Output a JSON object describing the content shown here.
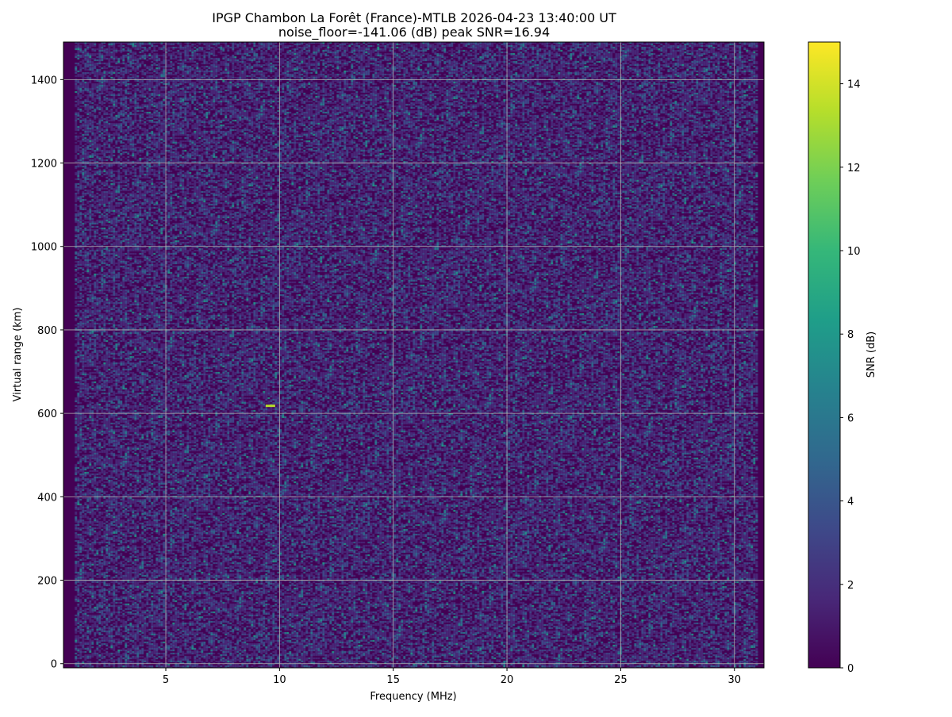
{
  "chart_data": {
    "type": "heatmap",
    "title": "IPGP Chambon La Forêt (France)-MTLB 2026-04-23 13:40:00  UT",
    "subtitle": "noise_floor=-141.06 (dB) peak SNR=16.94",
    "xlabel": "Frequency (MHz)",
    "ylabel": "Virtual range (km)",
    "xlim": [
      0.5,
      31.3
    ],
    "ylim": [
      -10,
      1490
    ],
    "x_ticks": [
      5,
      10,
      15,
      20,
      25,
      30
    ],
    "y_ticks": [
      0,
      200,
      400,
      600,
      800,
      1000,
      1200,
      1400
    ],
    "grid": true,
    "colorbar": {
      "label": "SNR (dB)",
      "range": [
        0,
        15
      ],
      "ticks": [
        0,
        2,
        4,
        6,
        8,
        10,
        12,
        14
      ],
      "colormap": "viridis"
    },
    "background_snr": 0,
    "features": [
      {
        "frequency_mhz": 9.6,
        "range_km": 618,
        "snr_db": 13
      }
    ]
  },
  "colors": {
    "viridis": [
      "#440154",
      "#482878",
      "#3e4989",
      "#31688e",
      "#26828e",
      "#1f9e89",
      "#35b779",
      "#6ece58",
      "#b5de2b",
      "#fde725"
    ],
    "grid": "#b0b0b0"
  }
}
